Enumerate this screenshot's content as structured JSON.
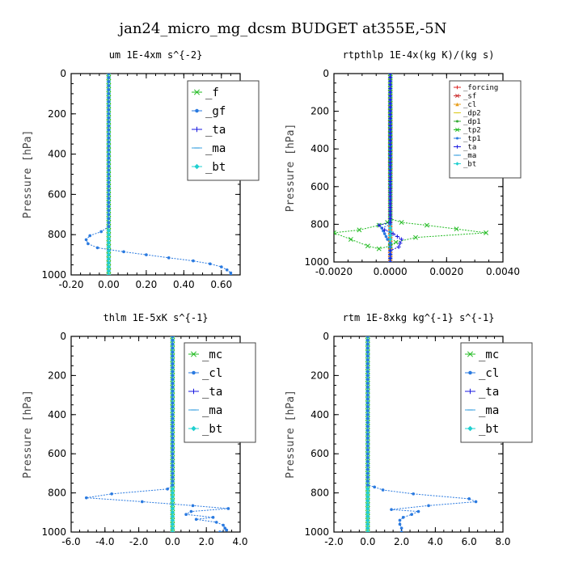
{
  "figure_title": "jan24_micro_mg_dcsm  BUDGET at355E,-5N",
  "chart_data": [
    {
      "type": "line",
      "title": "um  1E-4xm s^{-2}",
      "ylabel": "Pressure [hPa]",
      "xlabel": "",
      "xlim": [
        -0.2,
        0.7
      ],
      "ylim": [
        1000,
        0
      ],
      "y_inverted": true,
      "xticks": [
        -0.2,
        0.0,
        0.2,
        0.4,
        0.6
      ],
      "xtick_labels": [
        "-0.20",
        "0.00",
        "0.20",
        "0.40",
        "0.60"
      ],
      "yticks": [
        0,
        200,
        400,
        600,
        800,
        1000
      ],
      "ytick_labels": [
        "0",
        "200",
        "400",
        "600",
        "800",
        "1000"
      ],
      "legend_position": "top-right",
      "legend_size": "large",
      "series": [
        {
          "name": "_f",
          "color": "#22bb22",
          "marker": "x",
          "points": [
            [
              0.0,
              0
            ],
            [
              0.0,
              1000
            ]
          ]
        },
        {
          "name": "_gf",
          "color": "#2a7ae0",
          "marker": "dot",
          "points": [
            [
              0.0,
              0
            ],
            [
              0.0,
              760
            ],
            [
              -0.04,
              785
            ],
            [
              -0.1,
              805
            ],
            [
              -0.12,
              825
            ],
            [
              -0.11,
              845
            ],
            [
              -0.06,
              865
            ],
            [
              0.08,
              885
            ],
            [
              0.2,
              900
            ],
            [
              0.32,
              915
            ],
            [
              0.45,
              930
            ],
            [
              0.54,
              945
            ],
            [
              0.6,
              960
            ],
            [
              0.63,
              975
            ],
            [
              0.65,
              990
            ],
            [
              0.65,
              1000
            ]
          ]
        },
        {
          "name": "_ta",
          "color": "#1a1ae0",
          "marker": "plus",
          "points": [
            [
              0.0,
              0
            ],
            [
              0.0,
              1000
            ]
          ]
        },
        {
          "name": "_ma",
          "color": "#3aa0e0",
          "marker": "dash",
          "points": [
            [
              0.0,
              0
            ],
            [
              0.0,
              1000
            ]
          ]
        },
        {
          "name": "_bt",
          "color": "#20d0d0",
          "marker": "diamond",
          "points": [
            [
              0.0,
              0
            ],
            [
              0.0,
              1000
            ]
          ]
        }
      ]
    },
    {
      "type": "line",
      "title": "rtpthlp  1E-4x(kg K)/(kg s)",
      "ylabel": "Pressure [hPa]",
      "xlabel": "",
      "xlim": [
        -0.002,
        0.004
      ],
      "ylim": [
        1000,
        0
      ],
      "y_inverted": true,
      "xticks": [
        -0.002,
        0.0,
        0.002,
        0.004
      ],
      "xtick_labels": [
        "-0.0020",
        "0.0000",
        "0.0020",
        "0.0040"
      ],
      "yticks": [
        0,
        200,
        400,
        600,
        800,
        1000
      ],
      "ytick_labels": [
        "0",
        "200",
        "400",
        "600",
        "800",
        "1000"
      ],
      "legend_position": "top-right",
      "legend_size": "small",
      "series": [
        {
          "name": "_forcing",
          "color": "#dd2222",
          "marker": "plus",
          "points": [
            [
              0.0,
              0
            ],
            [
              0.0,
              1000
            ]
          ]
        },
        {
          "name": "_sf",
          "color": "#cc3333",
          "marker": "x",
          "points": [
            [
              0.0,
              0
            ],
            [
              0.0,
              1000
            ]
          ]
        },
        {
          "name": "_cl",
          "color": "#e8a020",
          "marker": "tri",
          "points": [
            [
              0.0,
              0
            ],
            [
              0.0,
              1000
            ]
          ]
        },
        {
          "name": "_dp2",
          "color": "#ddcc22",
          "marker": "dash",
          "points": [
            [
              0.0,
              0
            ],
            [
              0.0,
              1000
            ]
          ]
        },
        {
          "name": "_dp1",
          "color": "#33aa33",
          "marker": "dot",
          "points": [
            [
              0.0,
              0
            ],
            [
              0.0,
              1000
            ]
          ]
        },
        {
          "name": "_tp2",
          "color": "#22bb22",
          "marker": "x",
          "points": [
            [
              0.0,
              0
            ],
            [
              0.0,
              770
            ],
            [
              0.0004,
              790
            ],
            [
              0.0013,
              805
            ],
            [
              0.0034,
              845
            ],
            [
              0.0009,
              870
            ],
            [
              0.0002,
              895
            ],
            [
              0.0,
              915
            ],
            [
              -0.0004,
              930
            ],
            [
              -0.0008,
              915
            ],
            [
              -0.0014,
              880
            ],
            [
              -0.002,
              845
            ],
            [
              -0.0011,
              830
            ],
            [
              -0.0004,
              805
            ],
            [
              -0.0001,
              790
            ],
            [
              0.0,
              770
            ]
          ]
        },
        {
          "name": "_tp1",
          "color": "#2a7ae0",
          "marker": "dot",
          "points": [
            [
              0.0,
              0
            ],
            [
              0.0,
              800
            ],
            [
              -0.0003,
              820
            ],
            [
              -0.0002,
              850
            ],
            [
              -0.0001,
              880
            ],
            [
              0.0,
              900
            ],
            [
              0.0,
              1000
            ]
          ]
        },
        {
          "name": "_ta",
          "color": "#1a1ae0",
          "marker": "plus",
          "points": [
            [
              0.0,
              0
            ],
            [
              0.0,
              790
            ],
            [
              -0.0004,
              805
            ],
            [
              -0.0002,
              830
            ],
            [
              0.0001,
              850
            ],
            [
              0.0004,
              880
            ],
            [
              0.0003,
              920
            ],
            [
              0.0,
              940
            ],
            [
              0.0,
              1000
            ]
          ]
        },
        {
          "name": "_ma",
          "color": "#3aa0e0",
          "marker": "dash",
          "points": [
            [
              0.0,
              0
            ],
            [
              0.0,
              1000
            ]
          ]
        },
        {
          "name": "_bt",
          "color": "#20d0d0",
          "marker": "diamond",
          "points": [
            [
              0.0,
              0
            ],
            [
              0.0,
              1000
            ]
          ]
        }
      ]
    },
    {
      "type": "line",
      "title": "thlm  1E-5xK s^{-1}",
      "ylabel": "Pressure [hPa]",
      "xlabel": "",
      "xlim": [
        -6.0,
        4.0
      ],
      "ylim": [
        1000,
        0
      ],
      "y_inverted": true,
      "xticks": [
        -6.0,
        -4.0,
        -2.0,
        0.0,
        2.0,
        4.0
      ],
      "xtick_labels": [
        "-6.0",
        "-4.0",
        "-2.0",
        "0.0",
        "2.0",
        "4.0"
      ],
      "yticks": [
        0,
        200,
        400,
        600,
        800,
        1000
      ],
      "ytick_labels": [
        "0",
        "200",
        "400",
        "600",
        "800",
        "1000"
      ],
      "legend_position": "top-right",
      "legend_size": "large",
      "series": [
        {
          "name": "_mc",
          "color": "#22bb22",
          "marker": "x",
          "points": [
            [
              0.0,
              0
            ],
            [
              0.0,
              1000
            ]
          ]
        },
        {
          "name": "_cl",
          "color": "#2a7ae0",
          "marker": "dot",
          "points": [
            [
              0.0,
              0
            ],
            [
              0.0,
              760
            ],
            [
              -0.3,
              780
            ],
            [
              -3.6,
              805
            ],
            [
              -5.1,
              825
            ],
            [
              -1.8,
              845
            ],
            [
              1.2,
              865
            ],
            [
              3.3,
              880
            ],
            [
              1.1,
              895
            ],
            [
              0.8,
              910
            ],
            [
              2.4,
              925
            ],
            [
              1.4,
              935
            ],
            [
              2.6,
              950
            ],
            [
              3.0,
              965
            ],
            [
              3.1,
              980
            ],
            [
              3.2,
              990
            ],
            [
              2.8,
              1000
            ]
          ]
        },
        {
          "name": "_ta",
          "color": "#1a1ae0",
          "marker": "plus",
          "points": [
            [
              0.0,
              0
            ],
            [
              0.0,
              1000
            ]
          ]
        },
        {
          "name": "_ma",
          "color": "#3aa0e0",
          "marker": "dash",
          "points": [
            [
              0.0,
              0
            ],
            [
              0.0,
              1000
            ]
          ]
        },
        {
          "name": "_bt",
          "color": "#20d0d0",
          "marker": "diamond",
          "points": [
            [
              0.0,
              0
            ],
            [
              0.0,
              1000
            ]
          ]
        }
      ]
    },
    {
      "type": "line",
      "title": "rtm  1E-8xkg kg^{-1} s^{-1}",
      "ylabel": "Pressure [hPa]",
      "xlabel": "",
      "xlim": [
        -2.0,
        8.0
      ],
      "ylim": [
        1000,
        0
      ],
      "y_inverted": true,
      "xticks": [
        -2.0,
        0.0,
        2.0,
        4.0,
        6.0,
        8.0
      ],
      "xtick_labels": [
        "-2.0",
        "0.0",
        "2.0",
        "4.0",
        "6.0",
        "8.0"
      ],
      "yticks": [
        0,
        200,
        400,
        600,
        800,
        1000
      ],
      "ytick_labels": [
        "0",
        "200",
        "400",
        "600",
        "800",
        "1000"
      ],
      "legend_position": "top-right",
      "legend_size": "large",
      "series": [
        {
          "name": "_mc",
          "color": "#22bb22",
          "marker": "x",
          "points": [
            [
              0.0,
              0
            ],
            [
              0.0,
              1000
            ]
          ]
        },
        {
          "name": "_cl",
          "color": "#2a7ae0",
          "marker": "dot",
          "points": [
            [
              0.0,
              0
            ],
            [
              0.0,
              760
            ],
            [
              0.4,
              770
            ],
            [
              0.9,
              785
            ],
            [
              2.7,
              805
            ],
            [
              6.0,
              830
            ],
            [
              6.4,
              845
            ],
            [
              3.6,
              865
            ],
            [
              1.4,
              885
            ],
            [
              3.0,
              895
            ],
            [
              2.6,
              910
            ],
            [
              2.1,
              925
            ],
            [
              1.9,
              940
            ],
            [
              1.9,
              960
            ],
            [
              2.0,
              980
            ],
            [
              2.0,
              1000
            ]
          ]
        },
        {
          "name": "_ta",
          "color": "#1a1ae0",
          "marker": "plus",
          "points": [
            [
              0.0,
              0
            ],
            [
              0.0,
              1000
            ]
          ]
        },
        {
          "name": "_ma",
          "color": "#3aa0e0",
          "marker": "dash",
          "points": [
            [
              0.0,
              0
            ],
            [
              0.0,
              1000
            ]
          ]
        },
        {
          "name": "_bt",
          "color": "#20d0d0",
          "marker": "diamond",
          "points": [
            [
              0.0,
              0
            ],
            [
              0.0,
              1000
            ]
          ]
        }
      ]
    }
  ]
}
